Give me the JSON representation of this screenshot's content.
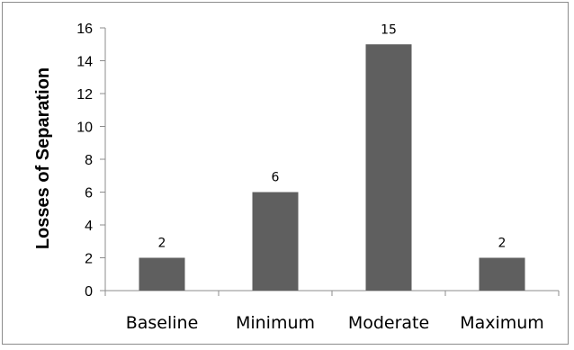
{
  "chart_data": {
    "type": "bar",
    "categories": [
      "Baseline",
      "Minimum",
      "Moderate",
      "Maximum"
    ],
    "values": [
      2,
      6,
      15,
      2
    ],
    "data_labels": [
      "2",
      "6",
      "15",
      "2"
    ],
    "title": "",
    "xlabel": "",
    "ylabel": "Losses of Separation",
    "ylim": [
      0,
      16
    ],
    "yticks": [
      0,
      2,
      4,
      6,
      8,
      10,
      12,
      14,
      16
    ],
    "grid": false,
    "legend": "none",
    "bar_color": "#5f5f5f"
  }
}
